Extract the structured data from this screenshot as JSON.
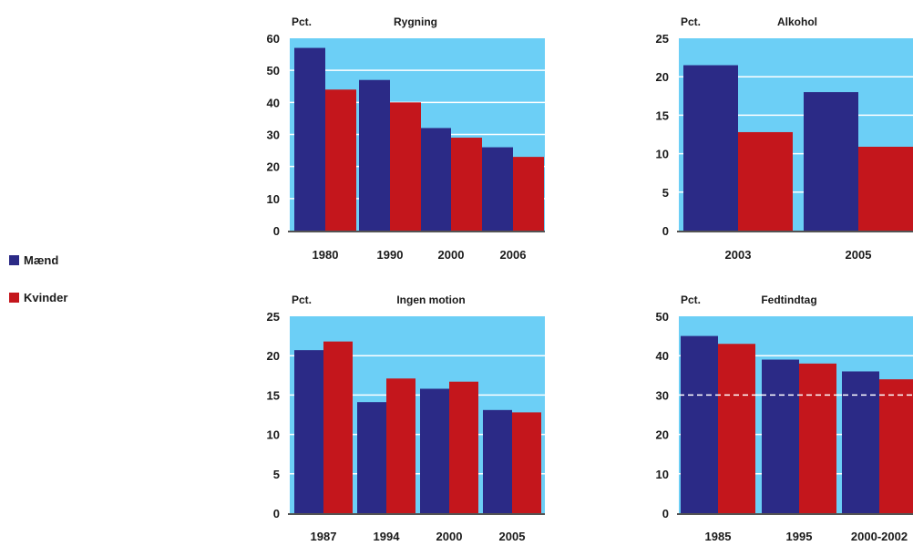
{
  "colors": {
    "maend": "#2b2a86",
    "kvinder": "#c4161c",
    "plot_bg": "#6ccff6",
    "gridline": "#ffffff"
  },
  "legend": [
    {
      "label": "Mænd",
      "color": "#2b2a86"
    },
    {
      "label": "Kvinder",
      "color": "#c4161c"
    }
  ],
  "chart_data": [
    {
      "type": "bar",
      "title": "Rygning",
      "ylabel": "Pct.",
      "xlabel": "",
      "categories": [
        "1980",
        "1990",
        "2000",
        "2006"
      ],
      "ylim": [
        0,
        60
      ],
      "yticks": [
        "0",
        "10",
        "20",
        "30",
        "40",
        "50",
        "60"
      ],
      "grid": true,
      "series": [
        {
          "name": "Mænd",
          "values": [
            57,
            47,
            32,
            26
          ]
        },
        {
          "name": "Kvinder",
          "values": [
            44,
            40,
            29,
            23
          ]
        }
      ]
    },
    {
      "type": "bar",
      "title": "Alkohol",
      "ylabel": "Pct.",
      "xlabel": "",
      "categories": [
        "2003",
        "2005"
      ],
      "ylim": [
        0,
        25
      ],
      "yticks": [
        "0",
        "5",
        "10",
        "15",
        "20",
        "25"
      ],
      "grid": true,
      "series": [
        {
          "name": "Mænd",
          "values": [
            21.5,
            18
          ]
        },
        {
          "name": "Kvinder",
          "values": [
            12.8,
            10.9
          ]
        }
      ]
    },
    {
      "type": "bar",
      "title": "Ingen motion",
      "ylabel": "Pct.",
      "xlabel": "",
      "categories": [
        "1987",
        "1994",
        "2000",
        "2005"
      ],
      "ylim": [
        0,
        25
      ],
      "yticks": [
        "0",
        "5",
        "10",
        "15",
        "20",
        "25"
      ],
      "grid": true,
      "series": [
        {
          "name": "Mænd",
          "values": [
            20.7,
            14.1,
            15.8,
            13.1
          ]
        },
        {
          "name": "Kvinder",
          "values": [
            21.8,
            17.1,
            16.7,
            12.8
          ]
        }
      ]
    },
    {
      "type": "bar",
      "title": "Fedtindtag",
      "ylabel": "Pct.",
      "xlabel": "",
      "categories": [
        "1985",
        "1995",
        "2000-2002"
      ],
      "ylim": [
        0,
        50
      ],
      "yticks": [
        "0",
        "10",
        "20",
        "30",
        "40",
        "50"
      ],
      "grid": true,
      "reference_line": 30,
      "series": [
        {
          "name": "Mænd",
          "values": [
            45,
            39,
            36
          ]
        },
        {
          "name": "Kvinder",
          "values": [
            43,
            38,
            34
          ]
        }
      ]
    }
  ]
}
